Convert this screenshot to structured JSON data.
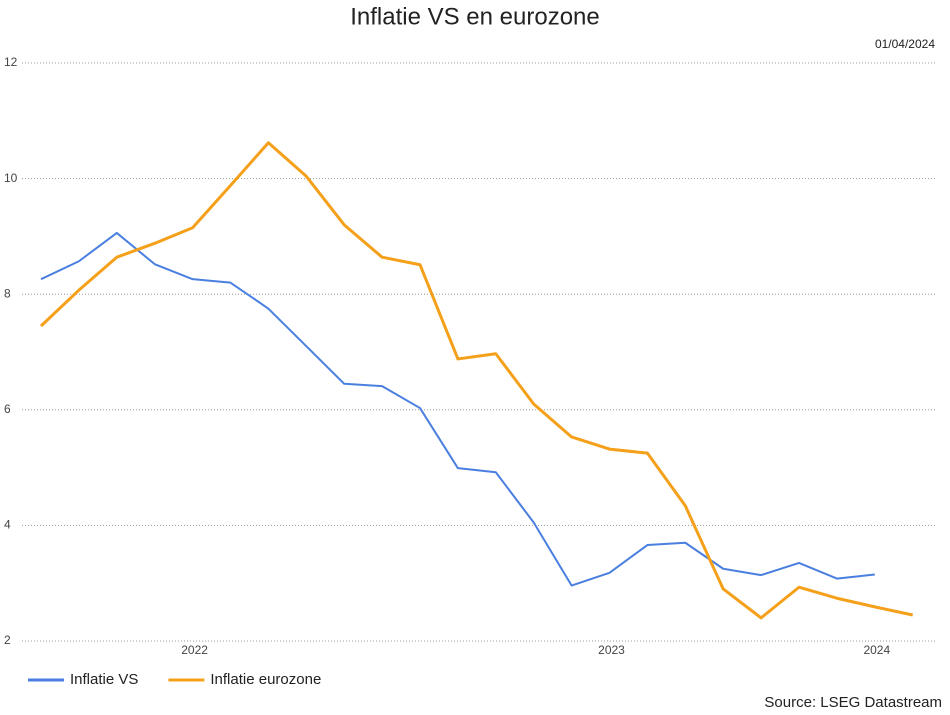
{
  "chart_data": {
    "type": "line",
    "title": "Inflatie VS en eurozone",
    "date": "01/04/2024",
    "source": "Source: LSEG Datastream",
    "categories": [
      null,
      null,
      null,
      null,
      "2022",
      null,
      null,
      null,
      null,
      null,
      null,
      null,
      null,
      null,
      null,
      "2023",
      null,
      null,
      null,
      null,
      null,
      null,
      "2024",
      null
    ],
    "series": [
      {
        "name": "Inflatie VS",
        "color": "#4a7fe0",
        "values": [
          8.26,
          8.57,
          9.06,
          8.52,
          8.26,
          8.2,
          7.75,
          7.1,
          6.45,
          6.41,
          6.03,
          4.99,
          4.92,
          4.05,
          2.96,
          3.18,
          3.66,
          3.7,
          3.25,
          3.14,
          3.35,
          3.08,
          3.15,
          null
        ]
      },
      {
        "name": "Inflatie eurozone",
        "color": "#f5a01a",
        "values": [
          7.45,
          8.07,
          8.64,
          8.88,
          9.15,
          9.88,
          10.62,
          10.04,
          9.2,
          8.64,
          8.51,
          6.88,
          6.97,
          6.1,
          5.53,
          5.32,
          5.25,
          4.34,
          2.9,
          2.4,
          2.93,
          2.74,
          2.59,
          2.45
        ]
      }
    ],
    "ylim": [
      2,
      12
    ],
    "yticks": [
      2,
      4,
      6,
      8,
      10,
      12
    ],
    "grid": true,
    "legend": "bottom-left"
  }
}
